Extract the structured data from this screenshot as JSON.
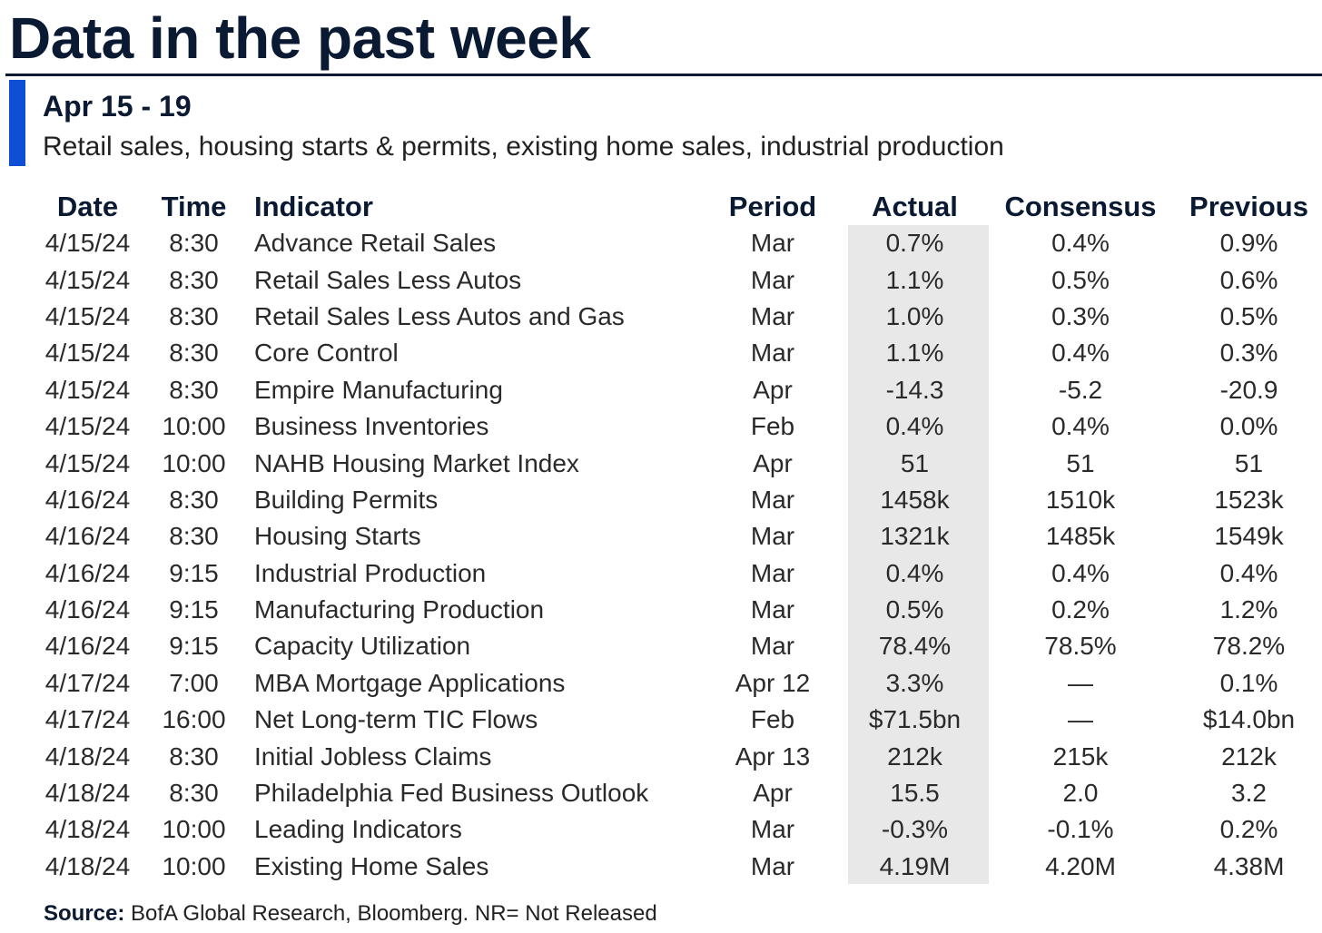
{
  "title": "Data in the past week",
  "week_label": "Apr 15 - 19",
  "subtitle": "Retail sales, housing starts & permits, existing home sales, industrial production",
  "colors": {
    "title": "#0b1a33",
    "accent_bar": "#0f4fd6",
    "actual_column_bg": "#e8e8e8"
  },
  "table": {
    "headers": {
      "date": "Date",
      "time": "Time",
      "indicator": "Indicator",
      "period": "Period",
      "actual": "Actual",
      "consensus": "Consensus",
      "previous": "Previous"
    },
    "rows": [
      {
        "date": "4/15/24",
        "time": "8:30",
        "indicator": "Advance Retail Sales",
        "period": "Mar",
        "actual": "0.7%",
        "consensus": "0.4%",
        "previous": "0.9%"
      },
      {
        "date": "4/15/24",
        "time": "8:30",
        "indicator": "Retail Sales Less Autos",
        "period": "Mar",
        "actual": "1.1%",
        "consensus": "0.5%",
        "previous": "0.6%"
      },
      {
        "date": "4/15/24",
        "time": "8:30",
        "indicator": "Retail Sales Less Autos and Gas",
        "period": "Mar",
        "actual": "1.0%",
        "consensus": "0.3%",
        "previous": "0.5%"
      },
      {
        "date": "4/15/24",
        "time": "8:30",
        "indicator": "Core Control",
        "period": "Mar",
        "actual": "1.1%",
        "consensus": "0.4%",
        "previous": "0.3%"
      },
      {
        "date": "4/15/24",
        "time": "8:30",
        "indicator": "Empire Manufacturing",
        "period": "Apr",
        "actual": "-14.3",
        "consensus": "-5.2",
        "previous": "-20.9"
      },
      {
        "date": "4/15/24",
        "time": "10:00",
        "indicator": "Business Inventories",
        "period": "Feb",
        "actual": "0.4%",
        "consensus": "0.4%",
        "previous": "0.0%"
      },
      {
        "date": "4/15/24",
        "time": "10:00",
        "indicator": "NAHB Housing Market Index",
        "period": "Apr",
        "actual": "51",
        "consensus": "51",
        "previous": "51"
      },
      {
        "date": "4/16/24",
        "time": "8:30",
        "indicator": "Building Permits",
        "period": "Mar",
        "actual": "1458k",
        "consensus": "1510k",
        "previous": "1523k"
      },
      {
        "date": "4/16/24",
        "time": "8:30",
        "indicator": "Housing Starts",
        "period": "Mar",
        "actual": "1321k",
        "consensus": "1485k",
        "previous": "1549k"
      },
      {
        "date": "4/16/24",
        "time": "9:15",
        "indicator": "Industrial Production",
        "period": "Mar",
        "actual": "0.4%",
        "consensus": "0.4%",
        "previous": "0.4%"
      },
      {
        "date": "4/16/24",
        "time": "9:15",
        "indicator": "Manufacturing Production",
        "period": "Mar",
        "actual": "0.5%",
        "consensus": "0.2%",
        "previous": "1.2%"
      },
      {
        "date": "4/16/24",
        "time": "9:15",
        "indicator": "Capacity Utilization",
        "period": "Mar",
        "actual": "78.4%",
        "consensus": "78.5%",
        "previous": "78.2%"
      },
      {
        "date": "4/17/24",
        "time": "7:00",
        "indicator": "MBA Mortgage Applications",
        "period": "Apr 12",
        "actual": "3.3%",
        "consensus": "—",
        "previous": "0.1%"
      },
      {
        "date": "4/17/24",
        "time": "16:00",
        "indicator": "Net Long-term TIC Flows",
        "period": "Feb",
        "actual": "$71.5bn",
        "consensus": "—",
        "previous": "$14.0bn"
      },
      {
        "date": "4/18/24",
        "time": "8:30",
        "indicator": "Initial Jobless Claims",
        "period": "Apr 13",
        "actual": "212k",
        "consensus": "215k",
        "previous": "212k"
      },
      {
        "date": "4/18/24",
        "time": "8:30",
        "indicator": "Philadelphia Fed Business Outlook",
        "period": "Apr",
        "actual": "15.5",
        "consensus": "2.0",
        "previous": "3.2"
      },
      {
        "date": "4/18/24",
        "time": "10:00",
        "indicator": "Leading Indicators",
        "period": "Mar",
        "actual": "-0.3%",
        "consensus": "-0.1%",
        "previous": "0.2%"
      },
      {
        "date": "4/18/24",
        "time": "10:00",
        "indicator": "Existing Home Sales",
        "period": "Mar",
        "actual": "4.19M",
        "consensus": "4.20M",
        "previous": "4.38M"
      }
    ]
  },
  "source": {
    "label": "Source:",
    "text": " BofA Global Research, Bloomberg. NR= Not Released"
  }
}
